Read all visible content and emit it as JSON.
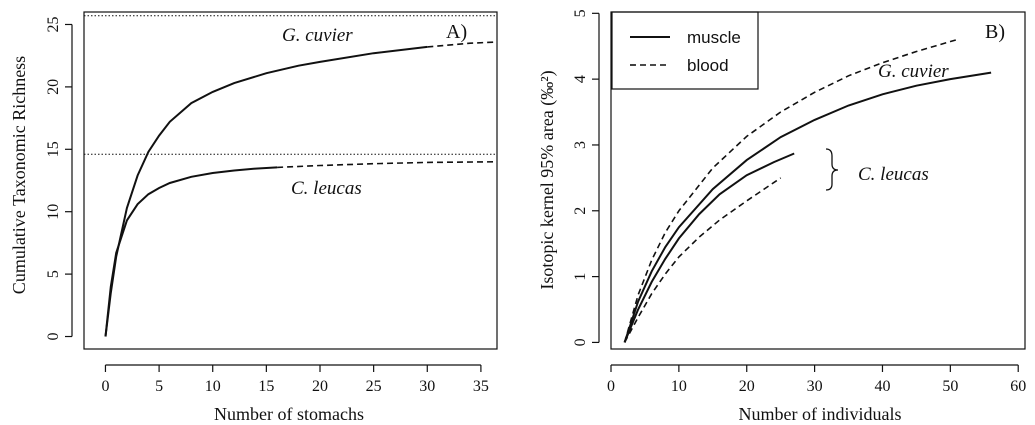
{
  "chart_data": [
    {
      "panel": "A)",
      "type": "line",
      "xlabel": "Number of stomachs",
      "ylabel": "Cumulative Taxonomic Richness",
      "xlim": [
        -2,
        36.5
      ],
      "ylim": [
        -1,
        26
      ],
      "xticks": [
        0,
        5,
        10,
        15,
        20,
        25,
        30,
        35
      ],
      "yticks": [
        0,
        5,
        10,
        15,
        20,
        25
      ],
      "box": true,
      "hlines": [
        25.7,
        14.6
      ],
      "series": [
        {
          "name": "G. cuvier",
          "style": "solid",
          "x": [
            0,
            0.5,
            1,
            2,
            3,
            4,
            5,
            6,
            8,
            10,
            12,
            15,
            18,
            20,
            25,
            30
          ],
          "y": [
            0,
            3.5,
            6.4,
            10.3,
            12.9,
            14.8,
            16.1,
            17.2,
            18.7,
            19.6,
            20.3,
            21.1,
            21.7,
            22.0,
            22.7,
            23.2
          ]
        },
        {
          "name": "G. cuvier",
          "style": "dashed",
          "x": [
            30,
            32,
            34,
            36.5
          ],
          "y": [
            23.2,
            23.35,
            23.5,
            23.6
          ]
        },
        {
          "name": "C. leucas",
          "style": "solid",
          "x": [
            0,
            0.5,
            1,
            2,
            3,
            4,
            5,
            6,
            8,
            10,
            12,
            14,
            16
          ],
          "y": [
            0,
            4.0,
            6.7,
            9.3,
            10.6,
            11.4,
            11.9,
            12.3,
            12.8,
            13.1,
            13.3,
            13.45,
            13.55
          ]
        },
        {
          "name": "C. leucas",
          "style": "dashed",
          "x": [
            16,
            20,
            25,
            30,
            36.5
          ],
          "y": [
            13.55,
            13.7,
            13.85,
            13.95,
            14.0
          ]
        }
      ],
      "annotations": [
        {
          "text": "G. cuvier",
          "x": 18.5,
          "y": 24.0
        },
        {
          "text": "C. leucas",
          "x": 20.5,
          "y": 11.9
        }
      ]
    },
    {
      "panel": "B)",
      "type": "line",
      "xlabel": "Number of individuals",
      "ylabel": "Isotopic kernel 95% area  (‰²)",
      "xlim": [
        0,
        61
      ],
      "ylim": [
        -0.1,
        5.02
      ],
      "xticks": [
        0,
        10,
        20,
        30,
        40,
        50,
        60
      ],
      "yticks": [
        0,
        1,
        2,
        3,
        4,
        5
      ],
      "box": true,
      "legend": {
        "position": "top-left",
        "entries": [
          {
            "label": "muscle",
            "style": "solid"
          },
          {
            "label": "blood",
            "style": "dashed"
          }
        ]
      },
      "series": [
        {
          "name": "G. cuvier",
          "tissue": "muscle",
          "style": "solid",
          "x": [
            2,
            4,
            6,
            8,
            10,
            15,
            20,
            25,
            30,
            35,
            40,
            45,
            50,
            56
          ],
          "y": [
            0,
            0.62,
            1.08,
            1.45,
            1.75,
            2.33,
            2.77,
            3.12,
            3.38,
            3.6,
            3.77,
            3.9,
            4.0,
            4.1
          ]
        },
        {
          "name": "G. cuvier",
          "tissue": "blood",
          "style": "dashed",
          "x": [
            2,
            4,
            6,
            8,
            10,
            15,
            20,
            25,
            30,
            35,
            40,
            45,
            51
          ],
          "y": [
            0,
            0.72,
            1.25,
            1.67,
            2.0,
            2.65,
            3.13,
            3.5,
            3.8,
            4.05,
            4.25,
            4.42,
            4.6
          ]
        },
        {
          "name": "C. leucas",
          "tissue": "muscle",
          "style": "solid",
          "x": [
            2,
            4,
            6,
            8,
            10,
            13,
            16,
            20,
            24,
            27
          ],
          "y": [
            0,
            0.5,
            0.92,
            1.27,
            1.58,
            1.95,
            2.25,
            2.54,
            2.74,
            2.87
          ]
        },
        {
          "name": "C. leucas",
          "tissue": "blood",
          "style": "dashed",
          "x": [
            2,
            4,
            6,
            8,
            10,
            13,
            16,
            20,
            25
          ],
          "y": [
            0,
            0.38,
            0.74,
            1.04,
            1.3,
            1.6,
            1.86,
            2.15,
            2.5
          ]
        }
      ],
      "annotations": [
        {
          "text": "G. cuvier",
          "x": 47,
          "y": 4.2
        },
        {
          "text": "C. leucas",
          "x": 42,
          "y": 2.55
        }
      ]
    }
  ]
}
